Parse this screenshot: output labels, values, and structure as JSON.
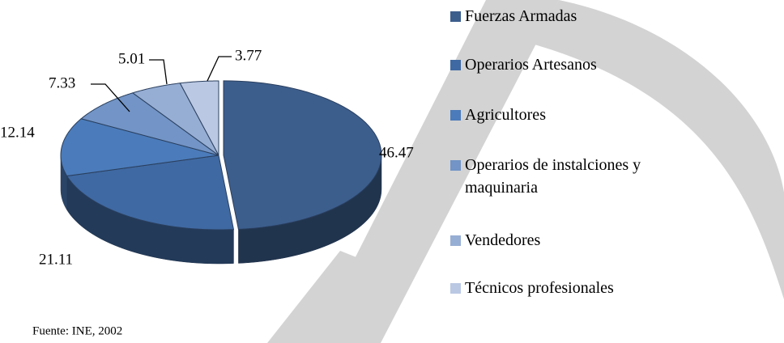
{
  "chart_data": {
    "type": "pie",
    "categories": [
      "Fuerzas Armadas",
      "Operarios Artesanos",
      "Agricultores",
      "Operarios de instalciones y maquinaria",
      "Vendedores",
      "Técnicos profesionales"
    ],
    "values": [
      46.47,
      21.11,
      12.14,
      7.33,
      5.01,
      3.77
    ],
    "colors": [
      "#3c5e8d",
      "#3f69a2",
      "#4b7bba",
      "#7294c6",
      "#97aed4",
      "#bac8e3"
    ],
    "source": "Fuente: INE, 2002"
  }
}
